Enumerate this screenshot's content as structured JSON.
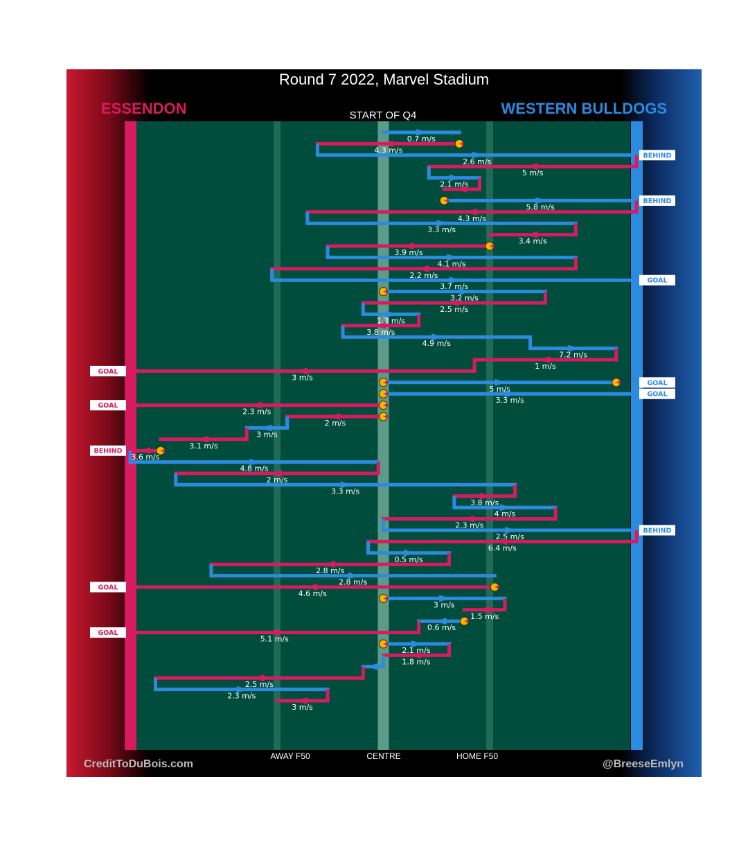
{
  "title": "Round 7 2022, Marvel Stadium",
  "subtitle": "START OF Q4",
  "teams": {
    "left": "ESSENDON",
    "right": "WESTERN BULLDOGS"
  },
  "axis_labels": {
    "away_f50": "AWAY F50",
    "centre": "CENTRE",
    "home_f50": "HOME F50"
  },
  "credits": {
    "left": "CreditToDuBois.com",
    "right": "@BreeseEmlyn"
  },
  "colors": {
    "essendon": "#d81b60",
    "bulldogs": "#2b8be0",
    "field": "#014d3d",
    "ball": "#f7b500"
  },
  "chart_data": {
    "type": "line",
    "description_x": "ground position from Essendon goal (0) to Bulldogs goal (100), centre = 50",
    "x_markers": {
      "away_f50": 29,
      "centre": 50,
      "home_f50": 71
    },
    "chains": [
      {
        "team": "bulldogs",
        "x": [
          50,
          65
        ],
        "speed": "0.7 m/s",
        "arrow_dir": "right"
      },
      {
        "team": "essendon",
        "x": [
          65,
          37
        ],
        "speed": "4.3 m/s",
        "arrow_dir": "left",
        "start_ball": true
      },
      {
        "team": "bulldogs",
        "x": [
          37,
          100
        ],
        "speed": "2.6 m/s",
        "arrow_dir": "right",
        "outcome": "BEHIND"
      },
      {
        "team": "essendon",
        "x": [
          100,
          59
        ],
        "speed": "5 m/s",
        "arrow_dir": "left"
      },
      {
        "team": "bulldogs",
        "x": [
          59,
          69
        ],
        "speed": "2.1 m/s",
        "arrow_dir": "right"
      },
      {
        "team": "essendon",
        "x": [
          69,
          62
        ],
        "speed": "",
        "arrow_dir": "left"
      },
      {
        "team": "bulldogs",
        "x": [
          62,
          100
        ],
        "speed": "5.8 m/s",
        "arrow_dir": "right",
        "outcome": "BEHIND",
        "start_ball": true
      },
      {
        "team": "essendon",
        "x": [
          100,
          35
        ],
        "speed": "4.3 m/s",
        "arrow_dir": "left"
      },
      {
        "team": "bulldogs",
        "x": [
          35,
          88
        ],
        "speed": "3.3 m/s",
        "arrow_dir": "right"
      },
      {
        "team": "essendon",
        "x": [
          88,
          71
        ],
        "speed": "3.4 m/s",
        "arrow_dir": "left"
      },
      {
        "team": "essendon",
        "x": [
          71,
          39
        ],
        "speed": "3.9 m/s",
        "arrow_dir": "left",
        "start_ball": true
      },
      {
        "team": "bulldogs",
        "x": [
          39,
          88
        ],
        "speed": "4.1 m/s",
        "arrow_dir": "right"
      },
      {
        "team": "essendon",
        "x": [
          88,
          28
        ],
        "speed": "2.2 m/s",
        "arrow_dir": "left"
      },
      {
        "team": "bulldogs",
        "x": [
          28,
          100
        ],
        "speed": "3.7 m/s",
        "arrow_dir": "right",
        "outcome": "GOAL"
      },
      {
        "team": "bulldogs",
        "x": [
          50,
          82
        ],
        "speed": "3.2 m/s",
        "arrow_dir": "right",
        "start_ball": true
      },
      {
        "team": "essendon",
        "x": [
          82,
          46
        ],
        "speed": "2.5 m/s",
        "arrow_dir": "left"
      },
      {
        "team": "bulldogs",
        "x": [
          46,
          57
        ],
        "speed": "1.3 m/s",
        "arrow_dir": "right"
      },
      {
        "team": "essendon",
        "x": [
          57,
          42
        ],
        "speed": "3.8 m/s",
        "arrow_dir": "left"
      },
      {
        "team": "bulldogs",
        "x": [
          42,
          79
        ],
        "speed": "4.9 m/s",
        "arrow_dir": "right"
      },
      {
        "team": "bulldogs",
        "x": [
          79,
          96
        ],
        "speed": "7.2 m/s",
        "arrow_dir": "right"
      },
      {
        "team": "essendon",
        "x": [
          96,
          68
        ],
        "speed": "1 m/s",
        "arrow_dir": "left"
      },
      {
        "team": "essendon",
        "x": [
          68,
          0
        ],
        "speed": "3 m/s",
        "arrow_dir": "left",
        "outcome": "GOAL"
      },
      {
        "team": "bulldogs",
        "x": [
          50,
          96
        ],
        "speed": "5 m/s",
        "arrow_dir": "right",
        "outcome": "GOAL",
        "start_ball": true,
        "end_ball": true
      },
      {
        "team": "bulldogs",
        "x": [
          50,
          100
        ],
        "speed": "3.3 m/s",
        "arrow_dir": "right",
        "outcome": "GOAL",
        "start_ball": true
      },
      {
        "team": "essendon",
        "x": [
          50,
          0
        ],
        "speed": "2.3 m/s",
        "arrow_dir": "left",
        "outcome": "GOAL",
        "start_ball": true
      },
      {
        "team": "essendon",
        "x": [
          50,
          31
        ],
        "speed": "2 m/s",
        "arrow_dir": "left",
        "start_ball": true
      },
      {
        "team": "bulldogs",
        "x": [
          31,
          23
        ],
        "speed": "3 m/s",
        "arrow_dir": "left"
      },
      {
        "team": "essendon",
        "x": [
          23,
          6
        ],
        "speed": "3.1 m/s",
        "arrow_dir": "left"
      },
      {
        "team": "essendon",
        "x": [
          6,
          0
        ],
        "speed": "3.6 m/s",
        "arrow_dir": "left",
        "outcome": "BEHIND",
        "start_ball": true
      },
      {
        "team": "bulldogs",
        "x": [
          0,
          49
        ],
        "speed": "4.8 m/s",
        "arrow_dir": "right"
      },
      {
        "team": "essendon",
        "x": [
          49,
          9
        ],
        "speed": "2 m/s",
        "arrow_dir": "left"
      },
      {
        "team": "bulldogs",
        "x": [
          9,
          76
        ],
        "speed": "3.3 m/s",
        "arrow_dir": "right"
      },
      {
        "team": "essendon",
        "x": [
          76,
          64
        ],
        "speed": "3.8 m/s",
        "arrow_dir": "right"
      },
      {
        "team": "bulldogs",
        "x": [
          64,
          84
        ],
        "speed": "4 m/s",
        "arrow_dir": "right"
      },
      {
        "team": "essendon",
        "x": [
          84,
          50
        ],
        "speed": "2.3 m/s",
        "arrow_dir": "left"
      },
      {
        "team": "bulldogs",
        "x": [
          50,
          100
        ],
        "speed": "2.5 m/s",
        "arrow_dir": "right",
        "outcome": "BEHIND"
      },
      {
        "team": "essendon",
        "x": [
          100,
          47
        ],
        "speed": "6.4 m/s",
        "arrow_dir": "left"
      },
      {
        "team": "bulldogs",
        "x": [
          47,
          63
        ],
        "speed": "0.5 m/s",
        "arrow_dir": "right"
      },
      {
        "team": "essendon",
        "x": [
          63,
          16
        ],
        "speed": "2.8 m/s",
        "arrow_dir": "left"
      },
      {
        "team": "bulldogs",
        "x": [
          16,
          72
        ],
        "speed": "2.8 m/s",
        "arrow_dir": "right"
      },
      {
        "team": "essendon",
        "x": [
          72,
          0
        ],
        "speed": "4.6 m/s",
        "arrow_dir": "left",
        "outcome": "GOAL",
        "start_ball": true
      },
      {
        "team": "bulldogs",
        "x": [
          50,
          74
        ],
        "speed": "3 m/s",
        "arrow_dir": "right",
        "start_ball": true
      },
      {
        "team": "essendon",
        "x": [
          74,
          66
        ],
        "speed": "1.5 m/s",
        "arrow_dir": "left"
      },
      {
        "team": "bulldogs",
        "x": [
          66,
          57
        ],
        "speed": "0.6 m/s",
        "arrow_dir": "left",
        "start_ball": true
      },
      {
        "team": "essendon",
        "x": [
          57,
          0
        ],
        "speed": "5.1 m/s",
        "arrow_dir": "left",
        "outcome": "GOAL"
      },
      {
        "team": "bulldogs",
        "x": [
          50,
          63
        ],
        "speed": "2.1 m/s",
        "arrow_dir": "right",
        "start_ball": true
      },
      {
        "team": "essendon",
        "x": [
          63,
          50
        ],
        "speed": "1.8 m/s",
        "arrow_dir": "left"
      },
      {
        "team": "bulldogs",
        "x": [
          50,
          46
        ],
        "speed": "",
        "arrow_dir": "left"
      },
      {
        "team": "essendon",
        "x": [
          46,
          5
        ],
        "speed": "2.5 m/s",
        "arrow_dir": "left"
      },
      {
        "team": "bulldogs",
        "x": [
          5,
          39
        ],
        "speed": "2.3 m/s",
        "arrow_dir": "right"
      },
      {
        "team": "essendon",
        "x": [
          39,
          29
        ],
        "speed": "3 m/s",
        "arrow_dir": "left"
      }
    ]
  }
}
